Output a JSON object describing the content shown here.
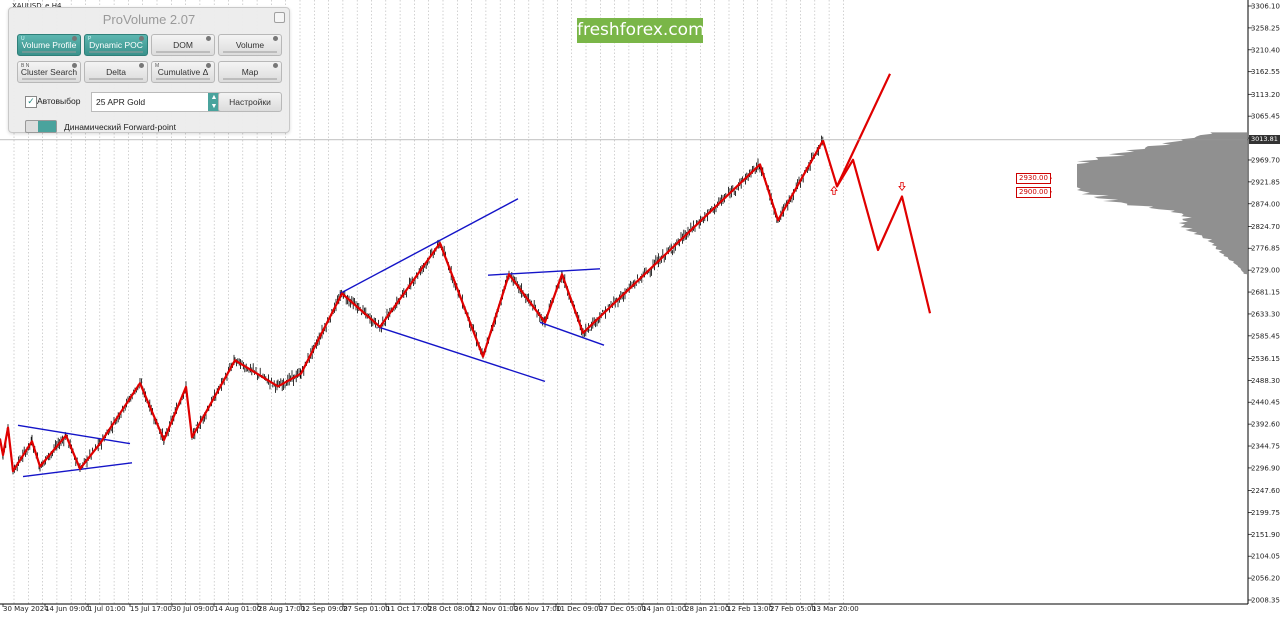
{
  "symbol": "XAUUSD_e,H4",
  "brand": "freshforex.com",
  "panel": {
    "title": "ProVolume 2.07",
    "buttons": [
      {
        "label": "Volume Profile",
        "key": "U",
        "active": true
      },
      {
        "label": "Dynamic POC",
        "key": "P",
        "active": true
      },
      {
        "label": "DOM",
        "key": "",
        "active": false
      },
      {
        "label": "Volume",
        "key": "",
        "active": false
      },
      {
        "label": "Cluster Search",
        "key": "B N",
        "active": false
      },
      {
        "label": "Delta",
        "key": "",
        "active": false
      },
      {
        "label": "Cumulative Δ",
        "key": "M",
        "active": false
      },
      {
        "label": "Map",
        "key": "",
        "active": false
      }
    ],
    "auto_select_label": "Автовыбор",
    "auto_select_checked": true,
    "instrument_value": "25 APR Gold",
    "settings_button": "Настройки",
    "forward_point_label": "Динамический Forward-point"
  },
  "colors": {
    "candles": "#000000",
    "zigzag": "#e00000",
    "channels": "#1414c8",
    "profile": "#7d7d7d",
    "brand_bg": "#7ab648",
    "panel_active": "#46a19b"
  },
  "chart_data": {
    "type": "line",
    "title": "",
    "price_axis_ticks": [
      3306.1,
      3258.25,
      3210.4,
      3162.55,
      3113.2,
      3065.45,
      3017.6,
      2969.7,
      2921.85,
      2874.0,
      2824.7,
      2776.85,
      2729.0,
      2681.15,
      2633.3,
      2585.45,
      2536.15,
      2488.3,
      2440.45,
      2392.6,
      2344.75,
      2296.9,
      2247.6,
      2199.75,
      2151.9,
      2104.05,
      2056.2,
      2008.35
    ],
    "y_range": [
      2008.35,
      3306.1
    ],
    "time_axis_labels": [
      "30 May 2024",
      "14 Jun 09:00",
      "1 Jul 01:00",
      "15 Jul 17:00",
      "30 Jul 09:00",
      "14 Aug 01:00",
      "28 Aug 17:00",
      "12 Sep 09:00",
      "27 Sep 01:00",
      "11 Oct 17:00",
      "28 Oct 08:00",
      "12 Nov 01:00",
      "26 Nov 17:00",
      "11 Dec 09:00",
      "27 Dec 05:00",
      "14 Jan 01:00",
      "28 Jan 21:00",
      "12 Feb 13:00",
      "27 Feb 05:00",
      "13 Mar 20:00"
    ],
    "current_price": "3013.81",
    "levels": [
      {
        "label": "2930.00",
        "value": 2930
      },
      {
        "label": "2900.00",
        "value": 2900
      }
    ],
    "zigzag": [
      {
        "t": 0,
        "p": 2360
      },
      {
        "t": 3,
        "p": 2325
      },
      {
        "t": 8,
        "p": 2385
      },
      {
        "t": 13,
        "p": 2290
      },
      {
        "t": 32,
        "p": 2355
      },
      {
        "t": 40,
        "p": 2300
      },
      {
        "t": 66,
        "p": 2368
      },
      {
        "t": 80,
        "p": 2295
      },
      {
        "t": 100,
        "p": 2350
      },
      {
        "t": 140,
        "p": 2482
      },
      {
        "t": 164,
        "p": 2358
      },
      {
        "t": 186,
        "p": 2474
      },
      {
        "t": 192,
        "p": 2364
      },
      {
        "t": 235,
        "p": 2532
      },
      {
        "t": 278,
        "p": 2475
      },
      {
        "t": 301,
        "p": 2503
      },
      {
        "t": 342,
        "p": 2678
      },
      {
        "t": 380,
        "p": 2605
      },
      {
        "t": 440,
        "p": 2788
      },
      {
        "t": 483,
        "p": 2540
      },
      {
        "t": 509,
        "p": 2720
      },
      {
        "t": 545,
        "p": 2615
      },
      {
        "t": 562,
        "p": 2720
      },
      {
        "t": 583,
        "p": 2592
      },
      {
        "t": 760,
        "p": 2960
      },
      {
        "t": 778,
        "p": 2838
      },
      {
        "t": 823,
        "p": 3012
      },
      {
        "t": 837,
        "p": 2912
      },
      {
        "t": 890,
        "p": 3158
      }
    ],
    "forecast": [
      {
        "t": 853,
        "p": 2970
      },
      {
        "t": 878,
        "p": 2773
      },
      {
        "t": 902,
        "p": 2890
      },
      {
        "t": 930,
        "p": 2635
      }
    ],
    "channels": [
      {
        "from": {
          "t": 18,
          "p": 2390
        },
        "to": {
          "t": 130,
          "p": 2350
        }
      },
      {
        "from": {
          "t": 23,
          "p": 2278
        },
        "to": {
          "t": 132,
          "p": 2308
        }
      },
      {
        "from": {
          "t": 340,
          "p": 2678
        },
        "to": {
          "t": 518,
          "p": 2885
        }
      },
      {
        "from": {
          "t": 378,
          "p": 2605
        },
        "to": {
          "t": 545,
          "p": 2486
        }
      },
      {
        "from": {
          "t": 488,
          "p": 2718
        },
        "to": {
          "t": 600,
          "p": 2732
        }
      },
      {
        "from": {
          "t": 540,
          "p": 2615
        },
        "to": {
          "t": 604,
          "p": 2565
        }
      }
    ],
    "forecast_markers": [
      {
        "t": 834,
        "p": 2903,
        "dir": "up"
      },
      {
        "t": 902,
        "p": 2912,
        "dir": "down"
      }
    ]
  }
}
